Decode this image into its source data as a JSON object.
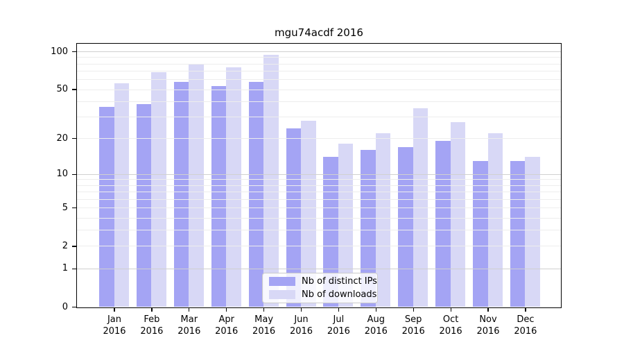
{
  "title": "mgu74acdf 2016",
  "legend": {
    "items": [
      {
        "label": "Nb of distinct IPs",
        "color": "#a4a4f4"
      },
      {
        "label": "Nb of downloads",
        "color": "#d8d8f6"
      }
    ]
  },
  "colors": {
    "bar_distinct_ips": "#a4a4f4",
    "bar_downloads": "#d8d8f6",
    "grid_major": "#d0d0d0",
    "grid_minor": "#ededed",
    "axis": "#000000"
  },
  "chart_data": {
    "type": "bar",
    "title": "mgu74acdf 2016",
    "scale": "log1p",
    "categories": [
      "Jan",
      "Feb",
      "Mar",
      "Apr",
      "May",
      "Jun",
      "Jul",
      "Aug",
      "Sep",
      "Oct",
      "Nov",
      "Dec"
    ],
    "year_label": "2016",
    "series": [
      {
        "name": "Nb of distinct IPs",
        "color": "#a4a4f4",
        "values": [
          36,
          38,
          57,
          53,
          57,
          24,
          14,
          16,
          17,
          19,
          13,
          13
        ]
      },
      {
        "name": "Nb of downloads",
        "color": "#d8d8f6",
        "values": [
          56,
          68,
          80,
          75,
          94,
          28,
          18,
          22,
          35,
          27,
          22,
          14
        ]
      }
    ],
    "yticks": [
      0,
      1,
      2,
      5,
      10,
      20,
      50,
      100
    ],
    "ylim": [
      0,
      115
    ],
    "grid": {
      "major": [
        1,
        10,
        100
      ],
      "minor": [
        2,
        3,
        4,
        5,
        6,
        7,
        8,
        9,
        20,
        30,
        40,
        50,
        60,
        70,
        80,
        90
      ]
    },
    "legend_position": "lower center",
    "xlabel": "",
    "ylabel": ""
  }
}
